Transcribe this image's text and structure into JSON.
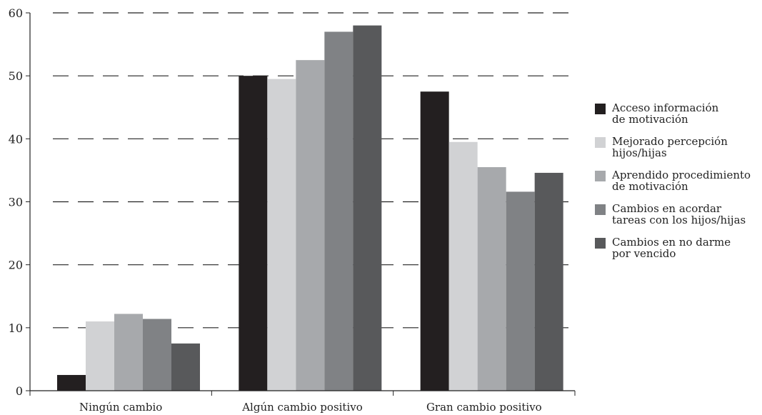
{
  "chart_data": {
    "type": "bar",
    "title": "",
    "xlabel": "",
    "ylabel": "",
    "ylim": [
      0,
      60
    ],
    "yticks": [
      0,
      10,
      20,
      30,
      40,
      50,
      60
    ],
    "grid": "horizontal-dashed",
    "legend_position": "right",
    "categories": [
      "Ningún cambio",
      "Algún cambio positivo",
      "Gran cambio positivo"
    ],
    "series": [
      {
        "name_lines": [
          "Acceso información",
          "de motivación"
        ],
        "color": "#231f20",
        "values": [
          2.5,
          50,
          47.5
        ]
      },
      {
        "name_lines": [
          "Mejorado percepción",
          "hijos/hijas"
        ],
        "color": "#d1d2d4",
        "values": [
          11,
          49.5,
          39.5
        ]
      },
      {
        "name_lines": [
          "Aprendido procedimiento",
          "de motivación"
        ],
        "color": "#a7a9ac",
        "values": [
          12.2,
          52.5,
          35.5
        ]
      },
      {
        "name_lines": [
          "Cambios en acordar",
          "tareas con los hijos/hijas"
        ],
        "color": "#808285",
        "values": [
          11.4,
          57,
          31.6
        ]
      },
      {
        "name_lines": [
          "Cambios en no darme",
          "por vencido"
        ],
        "color": "#58595b",
        "values": [
          7.5,
          58,
          34.6
        ]
      }
    ]
  }
}
